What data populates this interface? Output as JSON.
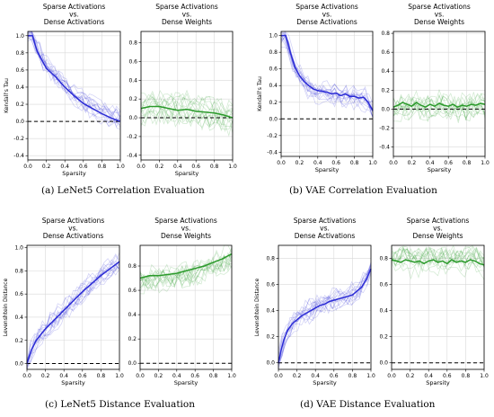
{
  "captions": [
    "(a)  LeNet5 Correlation Evaluation",
    "(b)  VAE Correlation Evaluation",
    "(c)  LeNet5 Distance Evaluation",
    "(d)  VAE Distance Evaluation"
  ],
  "colors": {
    "activations": "#2b2bd6",
    "weights": "#2a9a2a",
    "baseline": "#000000"
  },
  "chart_data": [
    {
      "type": "line",
      "title": "Sparse Activations\nvs.\nDense Activations",
      "xlabel": "Sparsity",
      "ylabel": "Kendall's Tau",
      "xlim": [
        0,
        1
      ],
      "ylim": [
        -0.45,
        1.05
      ],
      "xticks": [
        "0.0",
        "0.2",
        "0.4",
        "0.6",
        "0.8",
        "1.0"
      ],
      "yticks": [
        "1.0",
        "0.8",
        "0.6",
        "0.4",
        "0.2",
        "0.0",
        "-0.2",
        "-0.4"
      ],
      "grid": true,
      "series": [
        {
          "color": "blue",
          "x": [
            0,
            0.05,
            0.1,
            0.2,
            0.3,
            0.4,
            0.5,
            0.6,
            0.7,
            0.8,
            0.9,
            1.0
          ],
          "y": [
            1.0,
            1.0,
            0.82,
            0.62,
            0.52,
            0.4,
            0.3,
            0.21,
            0.15,
            0.09,
            0.04,
            0.0
          ]
        }
      ],
      "reference_line": 0
    },
    {
      "type": "line",
      "title": "Sparse Activations\nvs.\nDense Weights",
      "xlabel": "Sparsity",
      "ylabel": "",
      "xlim": [
        0,
        1
      ],
      "ylim": [
        -0.45,
        0.92
      ],
      "xticks": [
        "0.0",
        "0.2",
        "0.4",
        "0.6",
        "0.8",
        "1.0"
      ],
      "yticks": [
        "0.8",
        "0.6",
        "0.4",
        "0.2",
        "0.0",
        "-0.2",
        "-0.4"
      ],
      "grid": true,
      "series": [
        {
          "color": "green",
          "x": [
            0,
            0.1,
            0.2,
            0.3,
            0.4,
            0.5,
            0.6,
            0.7,
            0.8,
            0.9,
            1.0
          ],
          "y": [
            0.1,
            0.12,
            0.12,
            0.1,
            0.08,
            0.09,
            0.07,
            0.06,
            0.05,
            0.03,
            0.0
          ]
        }
      ],
      "reference_line": 0
    },
    {
      "type": "line",
      "title": "Sparse Activations\nvs.\nDense Activations",
      "xlabel": "Sparsity",
      "ylabel": "Kendall's Tau",
      "xlim": [
        0,
        1
      ],
      "ylim": [
        -0.45,
        1.05
      ],
      "xticks": [
        "0.0",
        "0.2",
        "0.4",
        "0.6",
        "0.8",
        "1.0"
      ],
      "yticks": [
        "1.0",
        "0.8",
        "0.6",
        "0.4",
        "0.2",
        "0.0",
        "-0.2",
        "-0.4"
      ],
      "grid": true,
      "series": [
        {
          "color": "blue",
          "x": [
            0,
            0.05,
            0.1,
            0.15,
            0.2,
            0.25,
            0.3,
            0.35,
            0.4,
            0.45,
            0.5,
            0.55,
            0.6,
            0.65,
            0.7,
            0.75,
            0.8,
            0.85,
            0.9,
            0.95,
            1.0
          ],
          "y": [
            1.0,
            1.0,
            0.8,
            0.62,
            0.52,
            0.45,
            0.4,
            0.36,
            0.34,
            0.33,
            0.32,
            0.3,
            0.31,
            0.28,
            0.3,
            0.27,
            0.27,
            0.25,
            0.26,
            0.2,
            0.1
          ]
        }
      ],
      "reference_line": 0
    },
    {
      "type": "line",
      "title": "Sparse Activations\nvs.\nDense Weights",
      "xlabel": "Sparsity",
      "ylabel": "",
      "xlim": [
        0,
        1
      ],
      "ylim": [
        -0.5,
        0.82
      ],
      "xticks": [
        "0.0",
        "0.2",
        "0.4",
        "0.6",
        "0.8",
        "1.0"
      ],
      "yticks": [
        "0.8",
        "0.6",
        "0.4",
        "0.2",
        "0.0",
        "-0.2",
        "-0.4"
      ],
      "grid": true,
      "series": [
        {
          "color": "green",
          "x": [
            0,
            0.05,
            0.1,
            0.15,
            0.2,
            0.25,
            0.3,
            0.35,
            0.4,
            0.45,
            0.5,
            0.55,
            0.6,
            0.65,
            0.7,
            0.75,
            0.8,
            0.85,
            0.9,
            0.95,
            1.0
          ],
          "y": [
            0.02,
            0.04,
            0.07,
            0.05,
            0.03,
            0.07,
            0.04,
            0.02,
            0.05,
            0.03,
            0.06,
            0.04,
            0.03,
            0.05,
            0.02,
            0.04,
            0.03,
            0.05,
            0.04,
            0.06,
            0.05
          ]
        }
      ],
      "reference_line": 0
    },
    {
      "type": "line",
      "title": "Sparse Activations\nvs.\nDense Activations",
      "xlabel": "Sparsity",
      "ylabel": "Levenshtein Distance",
      "xlim": [
        0,
        1
      ],
      "ylim": [
        -0.05,
        1.02
      ],
      "xticks": [
        "0.0",
        "0.2",
        "0.4",
        "0.6",
        "0.8",
        "1.0"
      ],
      "yticks": [
        "1.0",
        "0.8",
        "0.6",
        "0.4",
        "0.2",
        "0.0"
      ],
      "grid": true,
      "series": [
        {
          "color": "blue",
          "x": [
            0,
            0.05,
            0.1,
            0.2,
            0.3,
            0.4,
            0.5,
            0.6,
            0.7,
            0.8,
            0.9,
            1.0
          ],
          "y": [
            0.0,
            0.12,
            0.2,
            0.3,
            0.38,
            0.46,
            0.54,
            0.62,
            0.69,
            0.76,
            0.82,
            0.88
          ]
        }
      ],
      "reference_line": 0
    },
    {
      "type": "line",
      "title": "Sparse Activations\nvs.\nDense Weights",
      "xlabel": "Sparsity",
      "ylabel": "",
      "xlim": [
        0,
        1
      ],
      "ylim": [
        -0.05,
        0.97
      ],
      "xticks": [
        "0.0",
        "0.2",
        "0.4",
        "0.6",
        "0.8",
        "1.0"
      ],
      "yticks": [
        "0.8",
        "0.6",
        "0.4",
        "0.2",
        "0.0"
      ],
      "grid": true,
      "series": [
        {
          "color": "green",
          "x": [
            0,
            0.1,
            0.2,
            0.3,
            0.4,
            0.5,
            0.6,
            0.7,
            0.8,
            0.9,
            1.0
          ],
          "y": [
            0.7,
            0.72,
            0.72,
            0.73,
            0.74,
            0.76,
            0.78,
            0.8,
            0.83,
            0.86,
            0.9
          ]
        }
      ],
      "reference_line": 0
    },
    {
      "type": "line",
      "title": "Sparse Activations\nvs.\nDense Activations",
      "xlabel": "Sparsity",
      "ylabel": "Levenshtein Distance",
      "xlim": [
        0,
        1
      ],
      "ylim": [
        -0.05,
        0.9
      ],
      "xticks": [
        "0.0",
        "0.2",
        "0.4",
        "0.6",
        "0.8",
        "1.0"
      ],
      "yticks": [
        "0.8",
        "0.6",
        "0.4",
        "0.2",
        "0.0"
      ],
      "grid": true,
      "series": [
        {
          "color": "blue",
          "x": [
            0,
            0.03,
            0.06,
            0.1,
            0.15,
            0.2,
            0.25,
            0.3,
            0.35,
            0.4,
            0.45,
            0.5,
            0.55,
            0.6,
            0.65,
            0.7,
            0.75,
            0.8,
            0.85,
            0.9,
            0.95,
            1.0
          ],
          "y": [
            0.0,
            0.1,
            0.18,
            0.25,
            0.3,
            0.33,
            0.36,
            0.38,
            0.4,
            0.42,
            0.44,
            0.45,
            0.47,
            0.48,
            0.49,
            0.5,
            0.51,
            0.52,
            0.55,
            0.58,
            0.64,
            0.72
          ]
        }
      ],
      "reference_line": 0
    },
    {
      "type": "line",
      "title": "Sparse Activations\nvs.\nDense Weights",
      "xlabel": "Sparsity",
      "ylabel": "",
      "xlim": [
        0,
        1
      ],
      "ylim": [
        -0.05,
        0.9
      ],
      "xticks": [
        "0.0",
        "0.2",
        "0.4",
        "0.6",
        "0.8",
        "1.0"
      ],
      "yticks": [
        "0.8",
        "0.6",
        "0.4",
        "0.2",
        "0.0"
      ],
      "grid": true,
      "series": [
        {
          "color": "green",
          "x": [
            0,
            0.05,
            0.1,
            0.15,
            0.2,
            0.25,
            0.3,
            0.35,
            0.4,
            0.45,
            0.5,
            0.55,
            0.6,
            0.65,
            0.7,
            0.75,
            0.8,
            0.85,
            0.9,
            0.95,
            1.0
          ],
          "y": [
            0.79,
            0.78,
            0.77,
            0.79,
            0.78,
            0.77,
            0.78,
            0.76,
            0.78,
            0.79,
            0.77,
            0.78,
            0.76,
            0.79,
            0.77,
            0.78,
            0.77,
            0.79,
            0.78,
            0.76,
            0.75
          ]
        }
      ],
      "reference_line": 0
    }
  ]
}
